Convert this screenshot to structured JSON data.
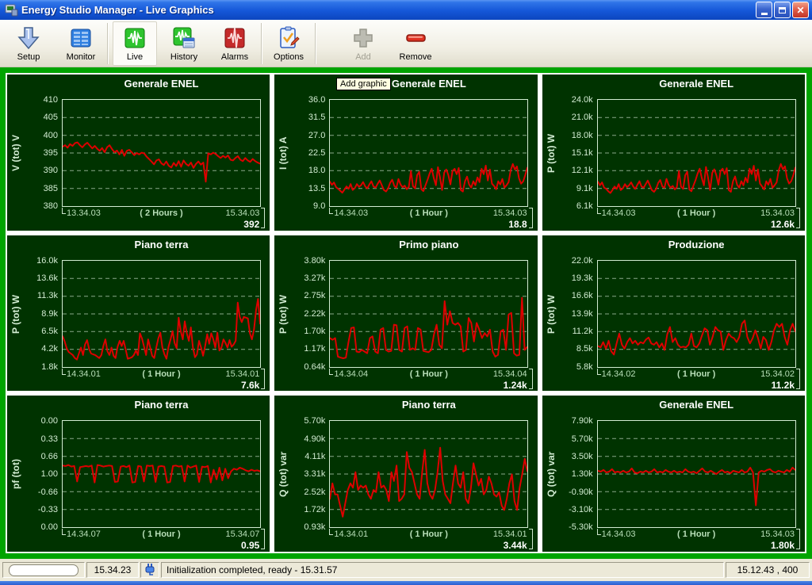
{
  "window": {
    "title": "Energy Studio Manager - Live Graphics"
  },
  "toolbar": {
    "buttons": [
      {
        "label": "Setup",
        "icon": "setup-arrow-icon",
        "state": "normal"
      },
      {
        "label": "Monitor",
        "icon": "monitor-table-icon",
        "state": "normal"
      },
      {
        "label": "Live",
        "icon": "live-wave-green-icon",
        "state": "active"
      },
      {
        "label": "History",
        "icon": "history-wave-icon",
        "state": "normal"
      },
      {
        "label": "Alarms",
        "icon": "alarms-wave-red-icon",
        "state": "normal"
      },
      {
        "label": "Options",
        "icon": "options-clipboard-icon",
        "state": "normal"
      },
      {
        "label": "Add",
        "icon": "add-plus-icon",
        "state": "disabled"
      },
      {
        "label": "Remove",
        "icon": "remove-minus-icon",
        "state": "normal"
      }
    ]
  },
  "tooltip": {
    "label": "Add graphic"
  },
  "statusbar": {
    "time": "15.34.23",
    "message": "Initialization completed, ready - 15.31.57",
    "right": "15.12.43 , 400"
  },
  "colors": {
    "frame_green": "#00a400",
    "panel_green": "#003300",
    "series_red": "#dd0000",
    "tick_text": "#d2ecd2",
    "title_text": "#ffffff"
  },
  "charts": [
    {
      "title": "Generale ENEL",
      "y_label": "V (tot) V",
      "y_ticks": [
        "410",
        "405",
        "400",
        "395",
        "390",
        "385",
        "380"
      ],
      "ymin": 380,
      "ymax": 410,
      "x_start": "13.34.03",
      "x_span": "( 2 Hours )",
      "x_end": "15.34.03",
      "value": "392",
      "values": [
        396.8,
        397.2,
        396.5,
        397.5,
        397.0,
        397.8,
        398.0,
        397.2,
        396.6,
        397.4,
        397.9,
        397.1,
        396.3,
        397.0,
        396.2,
        395.6,
        396.4,
        395.2,
        396.6,
        397.2,
        396.1,
        395.2,
        395.7,
        394.6,
        395.9,
        394.2,
        395.6,
        395.9,
        395.2,
        394.4,
        395.0,
        394.6,
        395.1,
        394.9,
        394.0,
        393.3,
        392.6,
        391.8,
        392.9,
        393.2,
        392.1,
        391.6,
        392.6,
        391.4,
        390.9,
        392.2,
        391.3,
        392.7,
        391.1,
        392.9,
        391.9,
        391.4,
        392.3,
        390.8,
        391.9,
        392.6,
        391.7,
        392.3,
        386.9,
        394.9,
        394.6,
        395.1,
        394.7,
        394.1,
        393.6,
        394.2,
        393.7,
        394.3,
        393.1,
        392.9,
        393.6,
        394.1,
        393.1,
        392.7,
        393.6,
        392.9,
        392.5,
        393.3,
        392.7,
        392.3,
        392.0
      ]
    },
    {
      "title": "Generale ENEL",
      "y_label": "I (tot) A",
      "y_ticks": [
        "36.0",
        "31.5",
        "27.0",
        "22.5",
        "18.0",
        "13.5",
        "9.0"
      ],
      "ymin": 9,
      "ymax": 36,
      "x_start": "14.34.03",
      "x_span": "( 1 Hour )",
      "x_end": "15.34.03",
      "value": "18.8",
      "values": [
        15.2,
        14.4,
        15.0,
        13.8,
        13.4,
        12.9,
        12.4,
        13.2,
        14.0,
        13.4,
        14.6,
        13.1,
        13.6,
        14.6,
        13.9,
        14.3,
        15.1,
        14.0,
        13.5,
        14.5,
        15.3,
        14.0,
        13.7,
        14.7,
        15.5,
        14.3,
        13.1,
        12.7,
        13.5,
        14.9,
        15.7,
        14.1,
        13.7,
        15.9,
        14.5,
        13.8,
        14.2,
        13.3,
        13.9,
        17.9,
        14.1,
        13.5,
        16.9,
        17.7,
        13.3,
        12.8,
        14.3,
        15.7,
        17.3,
        18.5,
        16.1,
        14.3,
        18.9,
        16.3,
        13.1,
        17.5,
        18.3,
        16.9,
        14.5,
        17.9,
        18.5,
        17.1,
        18.7,
        13.1,
        12.7,
        15.3,
        16.5,
        14.5,
        13.7,
        15.3,
        14.3,
        16.3,
        15.1,
        18.5,
        17.1,
        19.3,
        15.5,
        18.3,
        14.7,
        14.1,
        13.3,
        15.3,
        14.5,
        15.9,
        13.7,
        14.3,
        15.1,
        18.1,
        19.7,
        18.3,
        19.1,
        16.1,
        14.7,
        15.3,
        16.9,
        18.8
      ]
    },
    {
      "title": "Generale ENEL",
      "y_label": "P (tot) W",
      "y_ticks": [
        "24.0k",
        "21.0k",
        "18.0k",
        "15.1k",
        "12.1k",
        "9.1k",
        "6.1k"
      ],
      "ymin": 6.1,
      "ymax": 24,
      "x_start": "14.34.03",
      "x_span": "( 1 Hour )",
      "x_end": "15.34.03",
      "value": "12.6k",
      "values": [
        10.2,
        9.6,
        10.1,
        9.2,
        9.0,
        8.6,
        8.3,
        8.8,
        9.4,
        9.0,
        9.8,
        8.8,
        9.1,
        9.8,
        9.3,
        9.6,
        10.1,
        9.4,
        9.0,
        9.7,
        10.3,
        9.4,
        9.2,
        9.8,
        10.4,
        9.6,
        8.8,
        8.5,
        9.0,
        10.0,
        10.5,
        9.4,
        9.2,
        10.7,
        9.7,
        9.2,
        9.5,
        8.9,
        9.3,
        12.0,
        9.4,
        9.0,
        11.3,
        11.9,
        8.9,
        8.6,
        9.6,
        10.5,
        11.6,
        12.4,
        10.8,
        9.6,
        12.7,
        10.9,
        8.8,
        11.7,
        12.3,
        11.3,
        9.7,
        12.0,
        12.4,
        11.5,
        12.5,
        8.8,
        8.5,
        10.3,
        11.1,
        9.7,
        9.2,
        10.3,
        9.6,
        10.9,
        10.1,
        12.4,
        11.5,
        12.9,
        10.4,
        12.3,
        9.9,
        9.4,
        8.9,
        10.3,
        9.7,
        10.7,
        9.2,
        9.6,
        10.1,
        12.1,
        13.2,
        12.3,
        12.8,
        10.8,
        9.9,
        10.3,
        11.3,
        12.6
      ]
    },
    {
      "title": "Piano terra",
      "y_label": "P (tot) W",
      "y_ticks": [
        "16.0k",
        "13.6k",
        "11.3k",
        "8.9k",
        "6.5k",
        "4.2k",
        "1.8k"
      ],
      "ymin": 1.8,
      "ymax": 16,
      "x_start": "14.34.01",
      "x_span": "( 1 Hour )",
      "x_end": "15.34.01",
      "value": "7.6k",
      "values": [
        5.9,
        5.2,
        4.3,
        3.8,
        3.6,
        3.4,
        3.0,
        2.8,
        3.6,
        4.4,
        3.4,
        4.8,
        5.4,
        4.2,
        3.6,
        3.5,
        3.4,
        3.2,
        3.0,
        3.4,
        4.6,
        5.5,
        3.9,
        3.4,
        4.4,
        3.3,
        3.0,
        4.5,
        5.3,
        4.6,
        5.3,
        4.1,
        2.9,
        3.0,
        3.1,
        3.4,
        4.0,
        3.4,
        6.3,
        5.6,
        4.5,
        3.4,
        5.5,
        4.4,
        3.3,
        3.0,
        4.4,
        5.6,
        6.4,
        4.4,
        3.5,
        2.9,
        4.5,
        5.5,
        6.6,
        5.0,
        4.3,
        8.4,
        6.6,
        5.5,
        7.9,
        6.3,
        5.3,
        7.1,
        4.4,
        3.1,
        3.5,
        5.3,
        4.4,
        3.3,
        4.6,
        6.2,
        4.9,
        6.3,
        5.5,
        4.4,
        6.4,
        4.0,
        4.4,
        5.5,
        5.0,
        4.4,
        5.4,
        4.5,
        4.8,
        5.3,
        10.4,
        8.5,
        7.8,
        8.5,
        8.4,
        8.3,
        6.3,
        5.5,
        6.8,
        9.4,
        10.9,
        7.6
      ]
    },
    {
      "title": "Primo piano",
      "y_label": "P (tot) W",
      "y_ticks": [
        "3.80k",
        "3.27k",
        "2.75k",
        "2.22k",
        "1.70k",
        "1.17k",
        "0.64k"
      ],
      "ymin": 0.64,
      "ymax": 3.8,
      "x_start": "14.34.04",
      "x_span": "( 1 Hour )",
      "x_end": "15.34.04",
      "value": "1.24k",
      "values": [
        1.5,
        1.45,
        1.5,
        0.95,
        0.92,
        0.9,
        0.92,
        1.4,
        1.8,
        1.82,
        1.1,
        1.08,
        1.15,
        1.1,
        1.05,
        1.5,
        1.55,
        1.1,
        1.05,
        1.75,
        1.8,
        1.15,
        1.1,
        1.12,
        1.9,
        1.88,
        1.15,
        1.1,
        1.8,
        1.85,
        1.15,
        1.2,
        1.15,
        1.8,
        1.75,
        1.12,
        1.1,
        1.08,
        1.15,
        1.6,
        1.9,
        1.3,
        1.2,
        2.6,
        1.9,
        2.3,
        1.95,
        1.9,
        1.95,
        1.85,
        1.1,
        1.15,
        2.1,
        1.95,
        1.4,
        1.95,
        1.75,
        1.5,
        1.65,
        1.55,
        1.75,
        1.1,
        0.95,
        1.0,
        1.7,
        1.75,
        1.15,
        2.2,
        2.25,
        1.05,
        0.98,
        1.0,
        2.7,
        1.15,
        1.24
      ]
    },
    {
      "title": "Produzione",
      "y_label": "P (tot) W",
      "y_ticks": [
        "22.0k",
        "19.3k",
        "16.6k",
        "13.9k",
        "11.2k",
        "8.5k",
        "5.8k"
      ],
      "ymin": 5.8,
      "ymax": 22,
      "x_start": "14.34.02",
      "x_span": "( 1 Hour )",
      "x_end": "15.34.02",
      "value": "11.2k",
      "values": [
        9.0,
        8.8,
        9.6,
        8.6,
        9.8,
        8.2,
        7.7,
        9.4,
        10.9,
        9.2,
        8.6,
        9.6,
        10.2,
        9.4,
        9.8,
        9.2,
        9.6,
        9.4,
        10.0,
        10.3,
        9.4,
        9.2,
        9.6,
        8.8,
        9.4,
        8.4,
        10.8,
        11.9,
        9.6,
        10.2,
        9.2,
        8.8,
        8.9,
        8.8,
        9.2,
        10.9,
        9.0,
        8.8,
        9.4,
        10.6,
        11.7,
        11.4,
        9.2,
        10.4,
        11.9,
        11.4,
        11.2,
        8.4,
        9.9,
        10.9,
        10.4,
        10.2,
        9.6,
        10.4,
        12.4,
        12.9,
        10.4,
        9.4,
        10.2,
        11.4,
        10.2,
        8.6,
        10.4,
        9.9,
        8.4,
        9.6,
        11.4,
        12.4,
        11.9,
        12.4,
        10.4,
        9.2,
        11.4,
        12.4,
        11.2
      ]
    },
    {
      "title": "Piano terra",
      "y_label": "pf (tot)",
      "scale": "pf",
      "y_ticks": [
        "0.00",
        "0.33",
        "0.66",
        "1.00",
        "-0.66",
        "-0.33",
        "0.00"
      ],
      "ymin": -1,
      "ymax": 1,
      "x_start": "14.34.07",
      "x_span": "( 1 Hour )",
      "x_end": "15.34.07",
      "value": "0.95",
      "values": [
        0.84,
        0.85,
        0.83,
        0.86,
        0.85,
        -0.86,
        0.87,
        0.86,
        0.85,
        0.86,
        0.84,
        -0.84,
        0.83,
        0.84,
        0.86,
        0.85,
        0.84,
        0.85,
        -0.85,
        -0.86,
        0.86,
        0.85,
        0.87,
        0.84,
        -0.84,
        -0.85,
        0.85,
        0.86,
        -0.86,
        0.84,
        0.85,
        0.84,
        -0.85,
        0.86,
        0.85,
        0.86,
        -0.84,
        -0.85,
        0.85,
        0.84,
        0.86,
        0.85,
        -0.86,
        0.84,
        0.88,
        0.86,
        0.84,
        -0.85,
        0.86,
        0.87,
        0.85,
        -0.84,
        0.92,
        -0.9,
        0.88,
        -0.88,
        0.9,
        -0.92,
        0.95,
        0.9,
        0.92,
        0.88,
        0.9,
        0.93,
        0.95,
        0.92,
        0.94,
        0.93,
        0.95
      ]
    },
    {
      "title": "Piano terra",
      "y_label": "Q (tot) var",
      "y_ticks": [
        "5.70k",
        "4.90k",
        "4.11k",
        "3.31k",
        "2.52k",
        "1.72k",
        "0.93k"
      ],
      "ymin": 0.93,
      "ymax": 5.7,
      "x_start": "14.34.01",
      "x_span": "( 1 Hour )",
      "x_end": "15.34.01",
      "value": "3.44k",
      "values": [
        2.2,
        2.9,
        2.4,
        2.4,
        1.9,
        1.4,
        2.0,
        2.6,
        2.9,
        2.7,
        3.4,
        2.6,
        2.8,
        2.7,
        2.8,
        2.4,
        2.2,
        2.6,
        2.5,
        3.4,
        2.7,
        2.8,
        2.6,
        2.1,
        3.4,
        3.0,
        3.7,
        2.1,
        2.2,
        2.4,
        4.3,
        3.6,
        3.4,
        2.9,
        2.4,
        2.2,
        3.4,
        4.4,
        2.9,
        2.4,
        2.2,
        2.6,
        3.4,
        4.5,
        3.0,
        2.4,
        2.2,
        2.0,
        2.9,
        3.7,
        2.9,
        2.7,
        3.4,
        2.2,
        2.0,
        2.7,
        3.8,
        3.3,
        2.8,
        3.1,
        2.4,
        2.6,
        3.2,
        2.9,
        2.4,
        2.3,
        2.5,
        1.9,
        1.7,
        2.2,
        2.9,
        3.3,
        2.1,
        1.7,
        2.7,
        3.3,
        4.0,
        3.44
      ]
    },
    {
      "title": "Generale ENEL",
      "y_label": "Q (tot) var",
      "y_ticks": [
        "7.90k",
        "5.70k",
        "3.50k",
        "1.30k",
        "-0.90k",
        "-3.10k",
        "-5.30k"
      ],
      "ymin": -5.3,
      "ymax": 7.9,
      "x_start": "14.34.03",
      "x_span": "( 1 Hour )",
      "x_end": "15.34.03",
      "value": "1.80k",
      "values": [
        1.7,
        1.6,
        1.8,
        1.5,
        1.6,
        1.9,
        1.5,
        1.6,
        1.5,
        1.7,
        1.5,
        1.6,
        2.0,
        1.5,
        1.4,
        1.6,
        1.5,
        1.7,
        1.5,
        1.6,
        1.9,
        1.5,
        1.6,
        1.5,
        1.8,
        1.6,
        1.5,
        1.7,
        1.5,
        1.6,
        1.5,
        1.9,
        1.6,
        1.5,
        1.6,
        1.4,
        1.7,
        2.0,
        1.6,
        1.5,
        1.7,
        1.5,
        1.3,
        1.6,
        1.8,
        1.5,
        1.6,
        1.4,
        1.7,
        1.6,
        1.5,
        1.8,
        1.5,
        1.6,
        2.1,
        1.5,
        -2.6,
        1.5,
        1.7,
        1.6,
        1.8,
        1.9,
        1.6,
        1.5,
        1.7,
        1.6,
        1.5,
        1.8,
        1.6,
        2.1,
        1.8
      ]
    }
  ]
}
